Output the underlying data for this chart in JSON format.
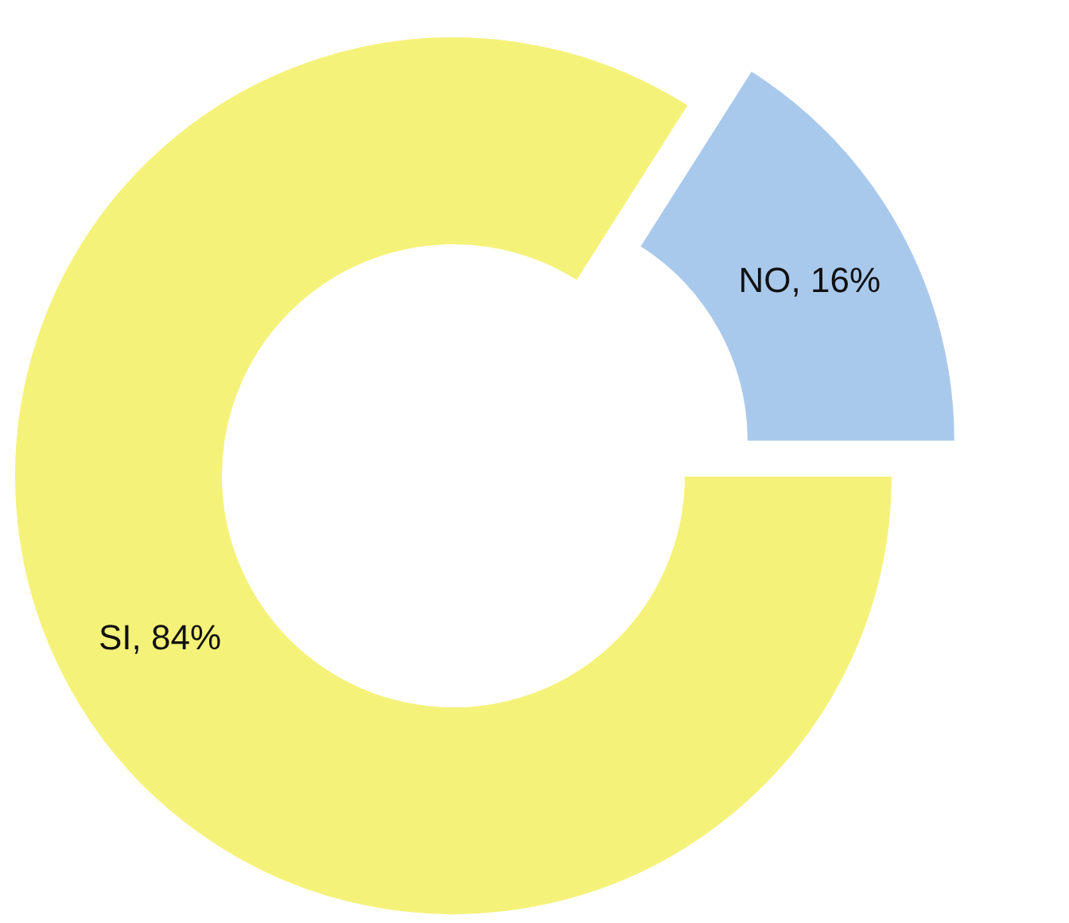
{
  "chart_data": {
    "type": "donut",
    "categories": [
      "SI",
      "NO"
    ],
    "values": [
      84,
      16
    ],
    "colors": [
      "#f5f27a",
      "#a9c9ec"
    ],
    "value_labels": [
      "84%",
      "16%"
    ]
  }
}
